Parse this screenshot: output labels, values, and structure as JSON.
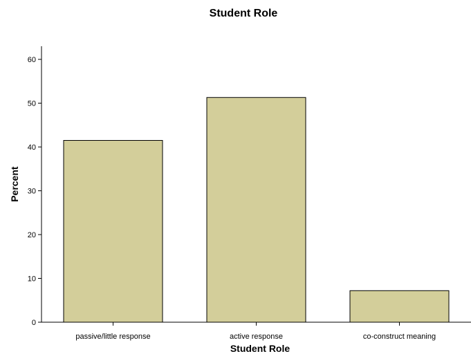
{
  "chart_data": {
    "type": "bar",
    "title": "Student Role",
    "xlabel": "Student Role",
    "ylabel": "Percent",
    "categories": [
      "passive/little response",
      "active response",
      "co-construct meaning"
    ],
    "values": [
      41.5,
      51.3,
      7.2
    ],
    "ylim": [
      0,
      63
    ],
    "yticks": [
      0,
      10,
      20,
      30,
      40,
      50,
      60
    ],
    "grid": false,
    "bar_color": "#d3ce9a"
  }
}
